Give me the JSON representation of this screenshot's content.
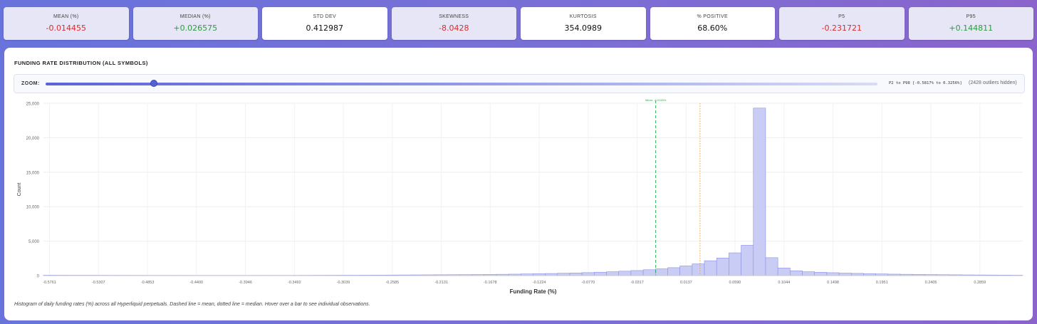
{
  "stats": [
    {
      "label": "MEAN (%)",
      "value": "-0.014455",
      "tone": "neg"
    },
    {
      "label": "MEDIAN (%)",
      "value": "+0.026575",
      "tone": "pos"
    },
    {
      "label": "STD DEV",
      "value": "0.412987",
      "tone": "neutral"
    },
    {
      "label": "SKEWNESS",
      "value": "-8.0428",
      "tone": "neg"
    },
    {
      "label": "KURTOSIS",
      "value": "354.0989",
      "tone": "neutral"
    },
    {
      "label": "% POSITIVE",
      "value": "68.60%",
      "tone": "neutral"
    },
    {
      "label": "P5",
      "value": "-0.231721",
      "tone": "neg"
    },
    {
      "label": "P95",
      "value": "+0.144811",
      "tone": "pos"
    }
  ],
  "panel": {
    "title": "FUNDING RATE DISTRIBUTION (ALL SYMBOLS)",
    "zoom_label": "ZOOM:",
    "zoom_fraction": 0.13,
    "zoom_range": "P2 to P98 [-0.5817% to 0.3256%]",
    "zoom_outliers": "(2428 outliers hidden)",
    "caption": "Histogram of daily funding rates (%) across all Hyperliquid perpetuals. Dashed line = mean, dotted line = median. Hover over a bar to see individual observations."
  },
  "colors": {
    "bar_fill": "#c9ccf4",
    "bar_stroke": "#8c92e6",
    "mean_line": "#22b04b",
    "median_line": "#f0a040",
    "neg": "#d32f2f",
    "pos": "#2e9a3e"
  },
  "chart_data": {
    "type": "bar",
    "title": "Funding Rate Distribution (All Symbols)",
    "xlabel": "Funding Rate (%)",
    "ylabel": "Count",
    "xlim": [
      -0.5817,
      0.3256
    ],
    "ylim": [
      0,
      25000
    ],
    "grid": true,
    "y_ticks": [
      0,
      5000,
      10000,
      15000,
      20000,
      25000
    ],
    "y_tick_labels": [
      "0",
      "5,000",
      "10,000",
      "15,000",
      "20,000",
      "25,000"
    ],
    "x_tick_labels": [
      "-0.5761",
      "-0.5307",
      "-0.4853",
      "-0.4400",
      "-0.3946",
      "-0.3492",
      "-0.3039",
      "-0.2585",
      "-0.2131",
      "-0.1678",
      "-0.1224",
      "-0.0770",
      "-0.0317",
      "0.0137",
      "0.0590",
      "0.1044",
      "0.1498",
      "0.1951",
      "0.2405",
      "0.2859"
    ],
    "bin_start": -0.5817,
    "bin_width": 0.01134,
    "values": [
      60,
      55,
      50,
      50,
      48,
      45,
      45,
      42,
      40,
      40,
      38,
      38,
      35,
      35,
      35,
      35,
      35,
      40,
      40,
      40,
      40,
      45,
      50,
      55,
      60,
      60,
      65,
      70,
      80,
      90,
      100,
      110,
      120,
      130,
      140,
      150,
      170,
      190,
      210,
      240,
      270,
      300,
      340,
      380,
      430,
      490,
      560,
      640,
      730,
      850,
      980,
      1150,
      1400,
      1700,
      2150,
      2550,
      3300,
      4400,
      24300,
      2600,
      1100,
      700,
      560,
      480,
      420,
      360,
      320,
      280,
      240,
      210,
      190,
      170,
      150,
      130,
      115,
      100,
      90,
      80,
      70,
      60
    ],
    "mean": -0.014455,
    "median": 0.026575,
    "mean_label": "Mean: -0.0145%"
  }
}
